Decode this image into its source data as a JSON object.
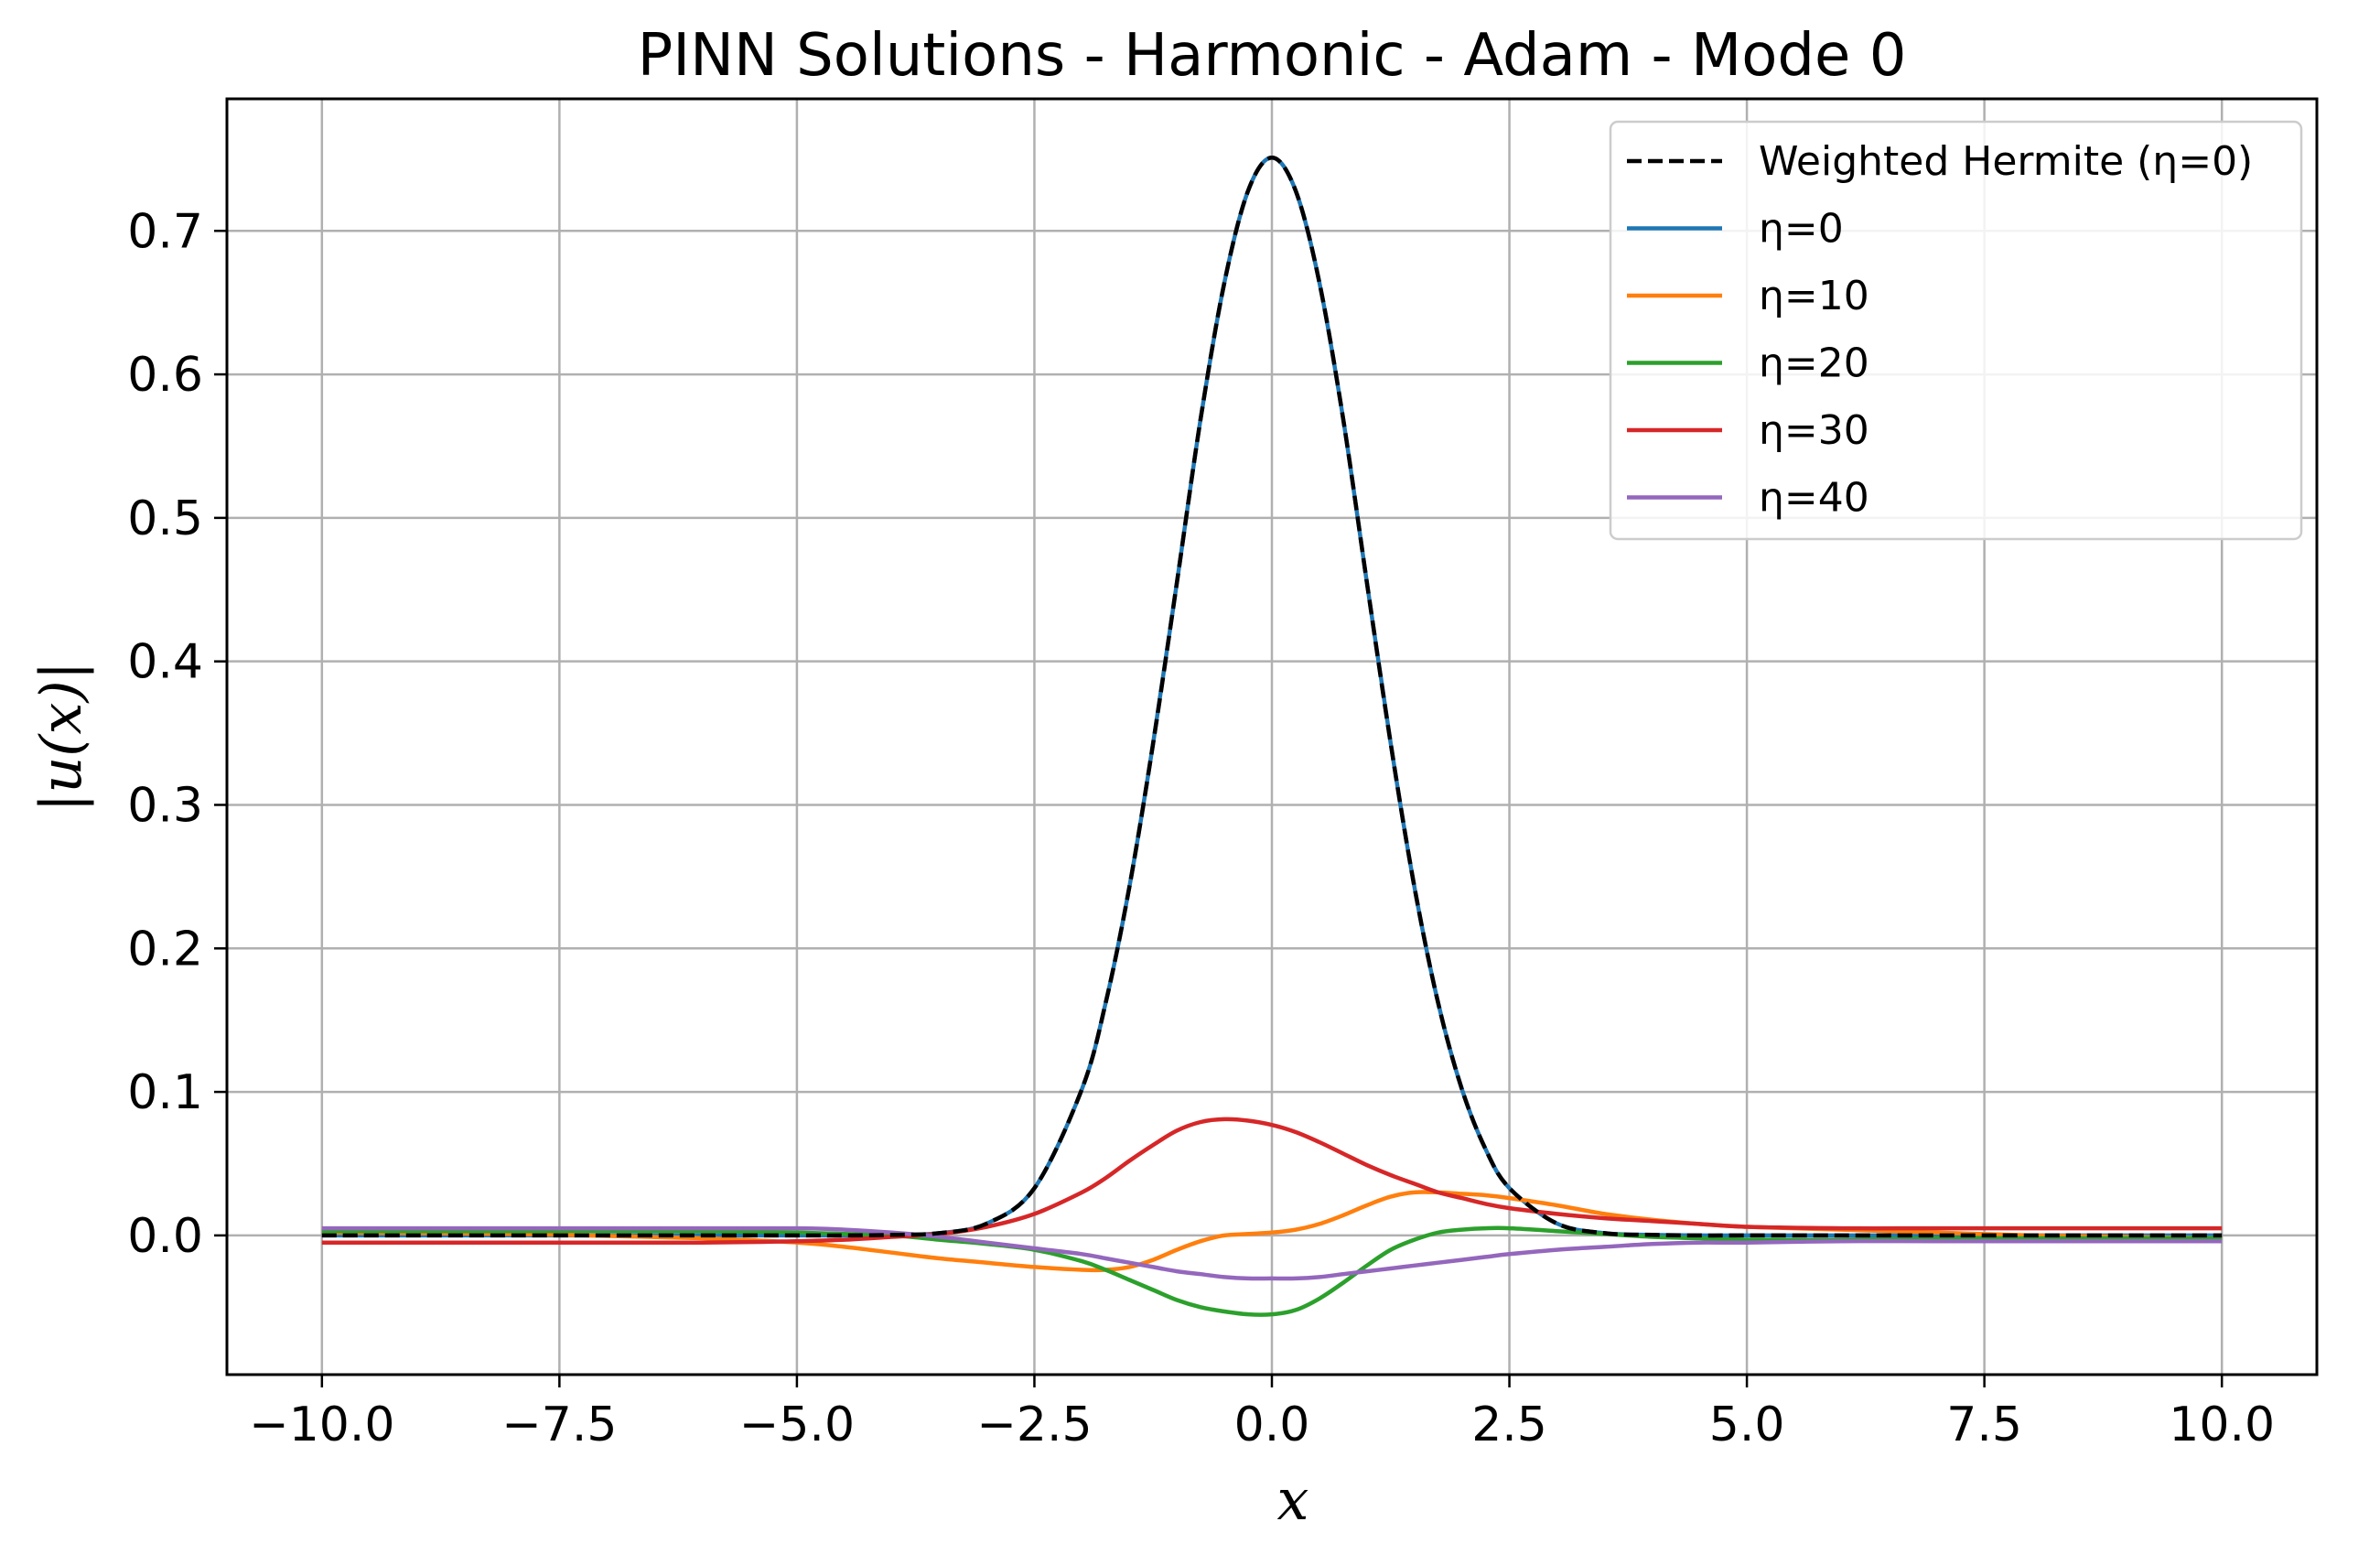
{
  "chart_data": {
    "type": "line",
    "title": "PINN Solutions - Harmonic - Adam - Mode 0",
    "xlabel": "x",
    "ylabel": "|u(x)|",
    "xlim": [
      -11,
      11
    ],
    "ylim": [
      -0.097,
      0.792
    ],
    "grid": true,
    "legend_position": "top-right",
    "x_ticks": [
      -10.0,
      -7.5,
      -5.0,
      -2.5,
      0.0,
      2.5,
      5.0,
      7.5,
      10.0
    ],
    "x_tick_labels": [
      "−10.0",
      "−7.5",
      "−5.0",
      "−2.5",
      "0.0",
      "2.5",
      "5.0",
      "7.5",
      "10.0"
    ],
    "y_ticks": [
      0.0,
      0.1,
      0.2,
      0.3,
      0.4,
      0.5,
      0.6,
      0.7
    ],
    "y_tick_labels": [
      "0.0",
      "0.1",
      "0.2",
      "0.3",
      "0.4",
      "0.5",
      "0.6",
      "0.7"
    ],
    "x": [
      -10.0,
      -8.0,
      -6.0,
      -5.0,
      -4.5,
      -4.0,
      -3.5,
      -3.0,
      -2.5,
      -2.0,
      -1.75,
      -1.5,
      -1.25,
      -1.0,
      -0.75,
      -0.5,
      -0.25,
      0.0,
      0.25,
      0.5,
      0.75,
      1.0,
      1.25,
      1.5,
      1.75,
      2.0,
      2.25,
      2.5,
      3.0,
      3.5,
      4.0,
      4.5,
      5.0,
      6.0,
      7.0,
      8.0,
      9.0,
      10.0
    ],
    "series": [
      {
        "name": "Weighted Hermite (η=0)",
        "color": "#000000",
        "dashed": true,
        "values": [
          0.0,
          0.0,
          0.0,
          0.0,
          0.0,
          0.0004,
          0.0016,
          0.0083,
          0.033,
          0.102,
          0.162,
          0.243,
          0.343,
          0.455,
          0.569,
          0.664,
          0.728,
          0.751,
          0.728,
          0.664,
          0.569,
          0.455,
          0.343,
          0.243,
          0.162,
          0.102,
          0.06,
          0.033,
          0.0083,
          0.0016,
          0.0004,
          0.0,
          0.0,
          0.0,
          0.0,
          0.0,
          0.0,
          0.0
        ]
      },
      {
        "name": "η=0",
        "color": "#1f77b4",
        "dashed": false,
        "values": [
          0.0,
          0.0,
          0.0,
          0.0,
          0.0,
          0.0004,
          0.0016,
          0.0083,
          0.033,
          0.102,
          0.162,
          0.243,
          0.343,
          0.455,
          0.569,
          0.664,
          0.728,
          0.751,
          0.728,
          0.664,
          0.569,
          0.455,
          0.343,
          0.243,
          0.162,
          0.102,
          0.06,
          0.033,
          0.0083,
          0.0016,
          0.0004,
          0.0,
          0.0,
          0.0,
          0.0,
          0.0,
          0.0,
          0.0
        ]
      },
      {
        "name": "η=10",
        "color": "#ff7f0e",
        "dashed": false,
        "values": [
          0.002,
          0.001,
          -0.002,
          -0.005,
          -0.008,
          -0.012,
          -0.016,
          -0.019,
          -0.022,
          -0.024,
          -0.024,
          -0.022,
          -0.017,
          -0.01,
          -0.004,
          0.0,
          0.001,
          0.002,
          0.004,
          0.008,
          0.014,
          0.021,
          0.027,
          0.03,
          0.03,
          0.029,
          0.028,
          0.026,
          0.021,
          0.015,
          0.011,
          0.008,
          0.006,
          0.004,
          0.002,
          0.0,
          -0.001,
          -0.002
        ]
      },
      {
        "name": "η=20",
        "color": "#2ca02c",
        "dashed": false,
        "values": [
          0.003,
          0.003,
          0.003,
          0.002,
          0.001,
          0.0,
          -0.003,
          -0.006,
          -0.01,
          -0.018,
          -0.024,
          -0.031,
          -0.038,
          -0.045,
          -0.05,
          -0.053,
          -0.055,
          -0.055,
          -0.052,
          -0.044,
          -0.033,
          -0.021,
          -0.01,
          -0.003,
          0.002,
          0.004,
          0.005,
          0.005,
          0.003,
          0.001,
          -0.001,
          -0.002,
          -0.003,
          -0.003,
          -0.002,
          -0.002,
          -0.002,
          -0.002
        ]
      },
      {
        "name": "η=30",
        "color": "#d62728",
        "dashed": false,
        "values": [
          -0.005,
          -0.005,
          -0.005,
          -0.004,
          -0.003,
          -0.001,
          0.001,
          0.006,
          0.015,
          0.03,
          0.04,
          0.052,
          0.063,
          0.073,
          0.079,
          0.081,
          0.08,
          0.077,
          0.072,
          0.065,
          0.057,
          0.049,
          0.042,
          0.036,
          0.03,
          0.026,
          0.022,
          0.019,
          0.015,
          0.012,
          0.01,
          0.008,
          0.006,
          0.005,
          0.005,
          0.005,
          0.005,
          0.005
        ]
      },
      {
        "name": "η=40",
        "color": "#9467bd",
        "dashed": false,
        "values": [
          0.005,
          0.005,
          0.005,
          0.005,
          0.004,
          0.002,
          -0.001,
          -0.005,
          -0.009,
          -0.013,
          -0.016,
          -0.019,
          -0.022,
          -0.025,
          -0.027,
          -0.029,
          -0.03,
          -0.03,
          -0.03,
          -0.029,
          -0.027,
          -0.025,
          -0.023,
          -0.021,
          -0.019,
          -0.017,
          -0.015,
          -0.013,
          -0.01,
          -0.008,
          -0.006,
          -0.005,
          -0.005,
          -0.004,
          -0.004,
          -0.004,
          -0.004,
          -0.004
        ]
      }
    ]
  }
}
